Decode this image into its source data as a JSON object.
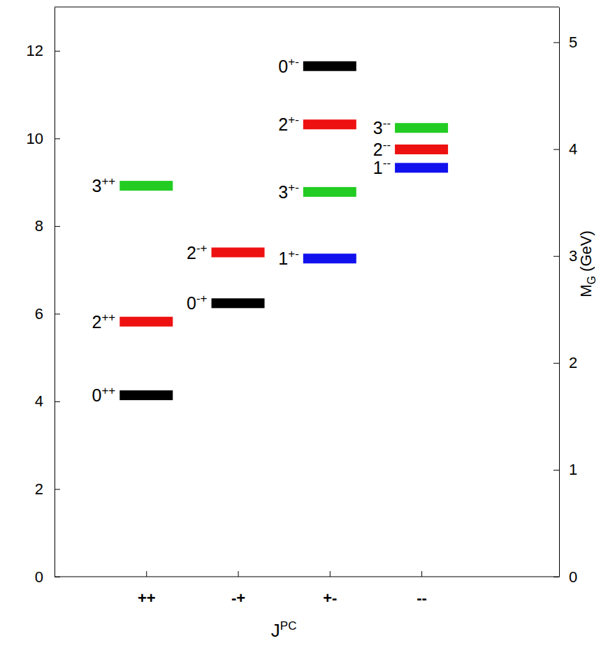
{
  "chart_data": {
    "type": "level",
    "categories": [
      "++",
      "-+",
      "+-",
      "--"
    ],
    "levels": [
      {
        "label": "0++",
        "category": "++",
        "value": 4.14,
        "color": "#000000"
      },
      {
        "label": "2++",
        "category": "++",
        "value": 5.82,
        "color": "#ee1111"
      },
      {
        "label": "3++",
        "category": "++",
        "value": 8.92,
        "color": "#22cc22"
      },
      {
        "label": "0-+",
        "category": "-+",
        "value": 6.24,
        "color": "#000000"
      },
      {
        "label": "2-+",
        "category": "-+",
        "value": 7.4,
        "color": "#ee1111"
      },
      {
        "label": "1+-",
        "category": "+-",
        "value": 7.26,
        "color": "#1111ee"
      },
      {
        "label": "3+-",
        "category": "+-",
        "value": 8.78,
        "color": "#22cc22"
      },
      {
        "label": "2+-",
        "category": "+-",
        "value": 10.32,
        "color": "#ee1111"
      },
      {
        "label": "0+-",
        "category": "+-",
        "value": 11.65,
        "color": "#000000"
      },
      {
        "label": "1--",
        "category": "--",
        "value": 9.33,
        "color": "#1111ee"
      },
      {
        "label": "2--",
        "category": "--",
        "value": 9.75,
        "color": "#ee1111"
      },
      {
        "label": "3--",
        "category": "--",
        "value": 10.24,
        "color": "#22cc22"
      }
    ],
    "ylim": [
      0,
      13
    ],
    "yticks": [
      0,
      2,
      4,
      6,
      8,
      10,
      12
    ],
    "y2lim": [
      0,
      5.33
    ],
    "y2ticks": [
      0,
      1,
      2,
      3,
      4,
      5
    ],
    "x_label": "JPC",
    "y2_label": "MG (GeV)"
  }
}
